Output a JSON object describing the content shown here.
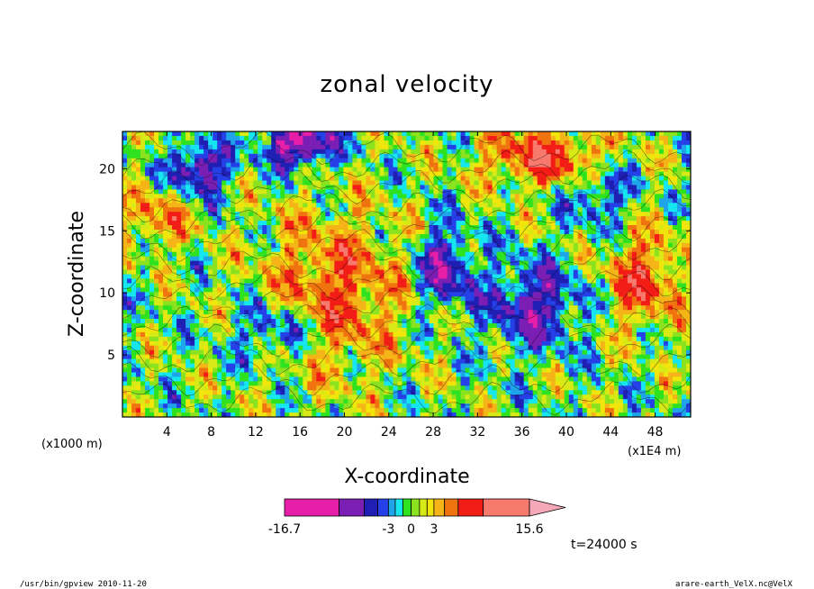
{
  "chart_data": {
    "type": "heatmap",
    "title": "zonal velocity",
    "xlabel": "X-coordinate",
    "ylabel": "Z-coordinate",
    "x_unit_left": "(x1000 m)",
    "x_unit_right": "(x1E4 m)",
    "x_ticks": [
      "4",
      "8",
      "12",
      "16",
      "20",
      "24",
      "28",
      "32",
      "36",
      "40",
      "44",
      "48"
    ],
    "x_tick_values": [
      4,
      8,
      12,
      16,
      20,
      24,
      28,
      32,
      36,
      40,
      44,
      48
    ],
    "xlim": [
      0,
      51.2
    ],
    "y_ticks": [
      "5",
      "10",
      "15",
      "20"
    ],
    "y_tick_values": [
      5,
      10,
      15,
      20
    ],
    "ylim": [
      0,
      23
    ],
    "colorbar": {
      "min": -16.7,
      "max": 15.6,
      "tick_labels": [
        "-16.7",
        "-3",
        "0",
        "3",
        "15.6"
      ],
      "levels": [
        -16.7,
        -9.5,
        -6.2,
        -4.4,
        -3.0,
        -2.1,
        -1.1,
        0,
        1.1,
        2.1,
        3.0,
        4.4,
        6.2,
        9.5,
        15.6
      ],
      "colors": [
        "#e61ea8",
        "#7b1fb4",
        "#1f1fb3",
        "#2540e6",
        "#1fa4ea",
        "#15e6f0",
        "#2ee21f",
        "#8be21f",
        "#d8ea16",
        "#f2e50c",
        "#f5b417",
        "#ef7410",
        "#f21d17",
        "#f87a6e",
        "#f7a8b8"
      ]
    },
    "annotation": "t=24000 s"
  },
  "footer": {
    "left": "/usr/bin/gpview   2010-11-20",
    "right": "arare-earth_VelX.nc@VelX"
  }
}
